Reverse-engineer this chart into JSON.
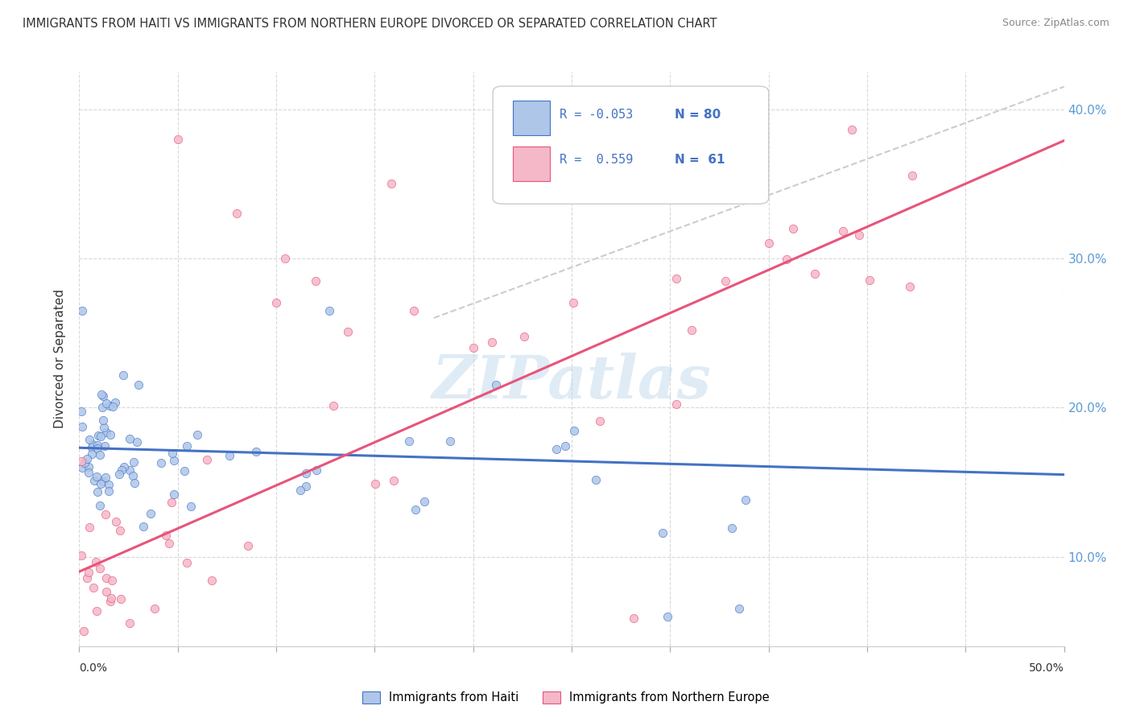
{
  "title": "IMMIGRANTS FROM HAITI VS IMMIGRANTS FROM NORTHERN EUROPE DIVORCED OR SEPARATED CORRELATION CHART",
  "source": "Source: ZipAtlas.com",
  "ylabel": "Divorced or Separated",
  "series1_color": "#aec6e8",
  "series2_color": "#f4b8c8",
  "series1_edge": "#4472c4",
  "series2_edge": "#e8547a",
  "trendline1_color": "#4472c4",
  "trendline2_color": "#e8547a",
  "refline_color": "#c0c0c0",
  "watermark": "ZIPatlas",
  "xmin": 0.0,
  "xmax": 0.5,
  "ymin": 0.04,
  "ymax": 0.425,
  "yticks": [
    0.1,
    0.2,
    0.3,
    0.4
  ],
  "ytick_labels": [
    "10.0%",
    "20.0%",
    "30.0%",
    "40.0%"
  ],
  "background_color": "#ffffff",
  "grid_color": "#d8d8d8",
  "legend_r1": "R = -0.053",
  "legend_n1": "N = 80",
  "legend_r2": "R =  0.559",
  "legend_n2": "N =  61",
  "legend_color1": "#4472c4",
  "legend_color2": "#e8547a"
}
